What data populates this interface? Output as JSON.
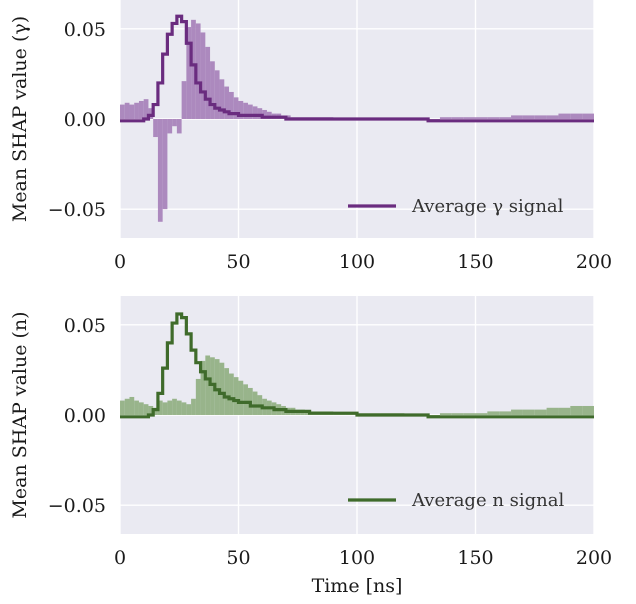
{
  "colors": {
    "background": "#eaeaf2",
    "grid": "#ffffff",
    "gamma": "#6a2c7f",
    "gamma_bar": "#a57eb8",
    "neutron": "#3f6b2b",
    "neutron_bar": "#8fae7f"
  },
  "chart_data": [
    {
      "type": "bar+line",
      "ylabel": "Mean SHAP value (γ)",
      "xlabel": "",
      "xlim": [
        0,
        200
      ],
      "ylim": [
        -0.066,
        0.066
      ],
      "xticks": [
        "0",
        "50",
        "100",
        "150",
        "200"
      ],
      "yticks": [
        "−0.05",
        "0.00",
        "0.05"
      ],
      "ytick_values": [
        -0.05,
        0.0,
        0.05
      ],
      "grid": true,
      "legend": {
        "label": "Average γ signal",
        "placement": "lower-right"
      },
      "series": [
        {
          "kind": "bar",
          "x": [
            0,
            2,
            4,
            6,
            8,
            10,
            12,
            14,
            16,
            18,
            20,
            22,
            24,
            26,
            28,
            30,
            32,
            34,
            36,
            38,
            40,
            42,
            44,
            46,
            48,
            50,
            52,
            54,
            56,
            58,
            60,
            62,
            64,
            66,
            68,
            70,
            72,
            74,
            76,
            78,
            80,
            85,
            90,
            95,
            100,
            105,
            110,
            115,
            120,
            125,
            130,
            135,
            140,
            145,
            150,
            155,
            160,
            165,
            170,
            175,
            180,
            185,
            190,
            195
          ],
          "values": [
            0.008,
            0.009,
            0.008,
            0.009,
            0.01,
            0.011,
            0.006,
            -0.01,
            -0.057,
            -0.05,
            -0.008,
            -0.004,
            -0.008,
            0.021,
            0.051,
            0.055,
            0.053,
            0.048,
            0.04,
            0.032,
            0.027,
            0.022,
            0.018,
            0.015,
            0.012,
            0.01,
            0.009,
            0.008,
            0.007,
            0.006,
            0.005,
            0.004,
            0.003,
            0.003,
            0.002,
            0.002,
            0.001,
            0.001,
            0.001,
            0.001,
            0.001,
            0.001,
            0.0,
            0.0,
            0.0,
            0.0,
            0.0,
            0.0,
            0.0,
            0.0,
            0.0,
            0.001,
            0.001,
            0.001,
            0.001,
            0.001,
            0.001,
            0.002,
            0.002,
            0.002,
            0.002,
            0.003,
            0.003,
            0.003
          ]
        },
        {
          "kind": "line",
          "name": "Average γ signal",
          "x": [
            0,
            8,
            10,
            12,
            14,
            16,
            18,
            20,
            22,
            24,
            26,
            28,
            30,
            32,
            34,
            36,
            38,
            40,
            42,
            44,
            46,
            48,
            50,
            55,
            60,
            65,
            70,
            80,
            90,
            100,
            110,
            120,
            130,
            140,
            150,
            160,
            170,
            180,
            190,
            200
          ],
          "values": [
            -0.001,
            -0.001,
            0.0,
            0.002,
            0.008,
            0.02,
            0.036,
            0.047,
            0.053,
            0.057,
            0.054,
            0.042,
            0.03,
            0.02,
            0.015,
            0.011,
            0.008,
            0.006,
            0.005,
            0.004,
            0.003,
            0.003,
            0.002,
            0.002,
            0.001,
            0.001,
            0.0,
            0.0,
            0.0,
            0.0,
            0.0,
            0.0,
            -0.001,
            -0.001,
            -0.001,
            -0.001,
            -0.001,
            -0.001,
            -0.001,
            -0.001
          ]
        }
      ]
    },
    {
      "type": "bar+line",
      "ylabel": "Mean SHAP value (n)",
      "xlabel": "Time [ns]",
      "xlim": [
        0,
        200
      ],
      "ylim": [
        -0.066,
        0.066
      ],
      "xticks": [
        "0",
        "50",
        "100",
        "150",
        "200"
      ],
      "yticks": [
        "−0.05",
        "0.00",
        "0.05"
      ],
      "ytick_values": [
        -0.05,
        0.0,
        0.05
      ],
      "grid": true,
      "legend": {
        "label": "Average n signal",
        "placement": "lower-right"
      },
      "series": [
        {
          "kind": "bar",
          "x": [
            0,
            2,
            4,
            6,
            8,
            10,
            12,
            14,
            16,
            18,
            20,
            22,
            24,
            26,
            28,
            30,
            32,
            34,
            36,
            38,
            40,
            42,
            44,
            46,
            48,
            50,
            52,
            54,
            56,
            58,
            60,
            62,
            64,
            66,
            68,
            70,
            72,
            74,
            76,
            78,
            80,
            85,
            90,
            95,
            100,
            105,
            110,
            115,
            120,
            125,
            130,
            135,
            140,
            145,
            150,
            155,
            160,
            165,
            170,
            175,
            180,
            185,
            190,
            195
          ],
          "values": [
            0.008,
            0.009,
            0.01,
            0.008,
            0.007,
            0.006,
            0.005,
            0.004,
            0.008,
            0.007,
            0.008,
            0.009,
            0.008,
            0.007,
            0.006,
            0.009,
            0.02,
            0.03,
            0.033,
            0.032,
            0.031,
            0.029,
            0.026,
            0.023,
            0.021,
            0.019,
            0.017,
            0.015,
            0.013,
            0.011,
            0.009,
            0.008,
            0.007,
            0.006,
            0.005,
            0.004,
            0.004,
            0.003,
            0.003,
            0.002,
            0.002,
            0.002,
            0.001,
            0.001,
            0.001,
            0.001,
            0.001,
            0.001,
            0.0,
            0.0,
            0.0,
            0.001,
            0.001,
            0.001,
            0.001,
            0.002,
            0.002,
            0.003,
            0.003,
            0.003,
            0.004,
            0.004,
            0.005,
            0.005
          ]
        },
        {
          "kind": "line",
          "name": "Average n signal",
          "x": [
            0,
            8,
            10,
            12,
            14,
            16,
            18,
            20,
            22,
            24,
            26,
            28,
            30,
            32,
            34,
            36,
            38,
            40,
            42,
            44,
            46,
            48,
            50,
            55,
            60,
            65,
            70,
            80,
            90,
            100,
            110,
            120,
            130,
            140,
            150,
            160,
            170,
            180,
            190,
            200
          ],
          "values": [
            -0.001,
            -0.001,
            -0.001,
            0.0,
            0.003,
            0.012,
            0.026,
            0.04,
            0.051,
            0.056,
            0.054,
            0.045,
            0.036,
            0.029,
            0.024,
            0.02,
            0.017,
            0.014,
            0.012,
            0.01,
            0.009,
            0.008,
            0.007,
            0.005,
            0.004,
            0.003,
            0.002,
            0.001,
            0.001,
            0.0,
            0.0,
            0.0,
            -0.001,
            -0.001,
            -0.001,
            -0.001,
            -0.001,
            -0.001,
            -0.001,
            -0.001
          ]
        }
      ]
    }
  ]
}
